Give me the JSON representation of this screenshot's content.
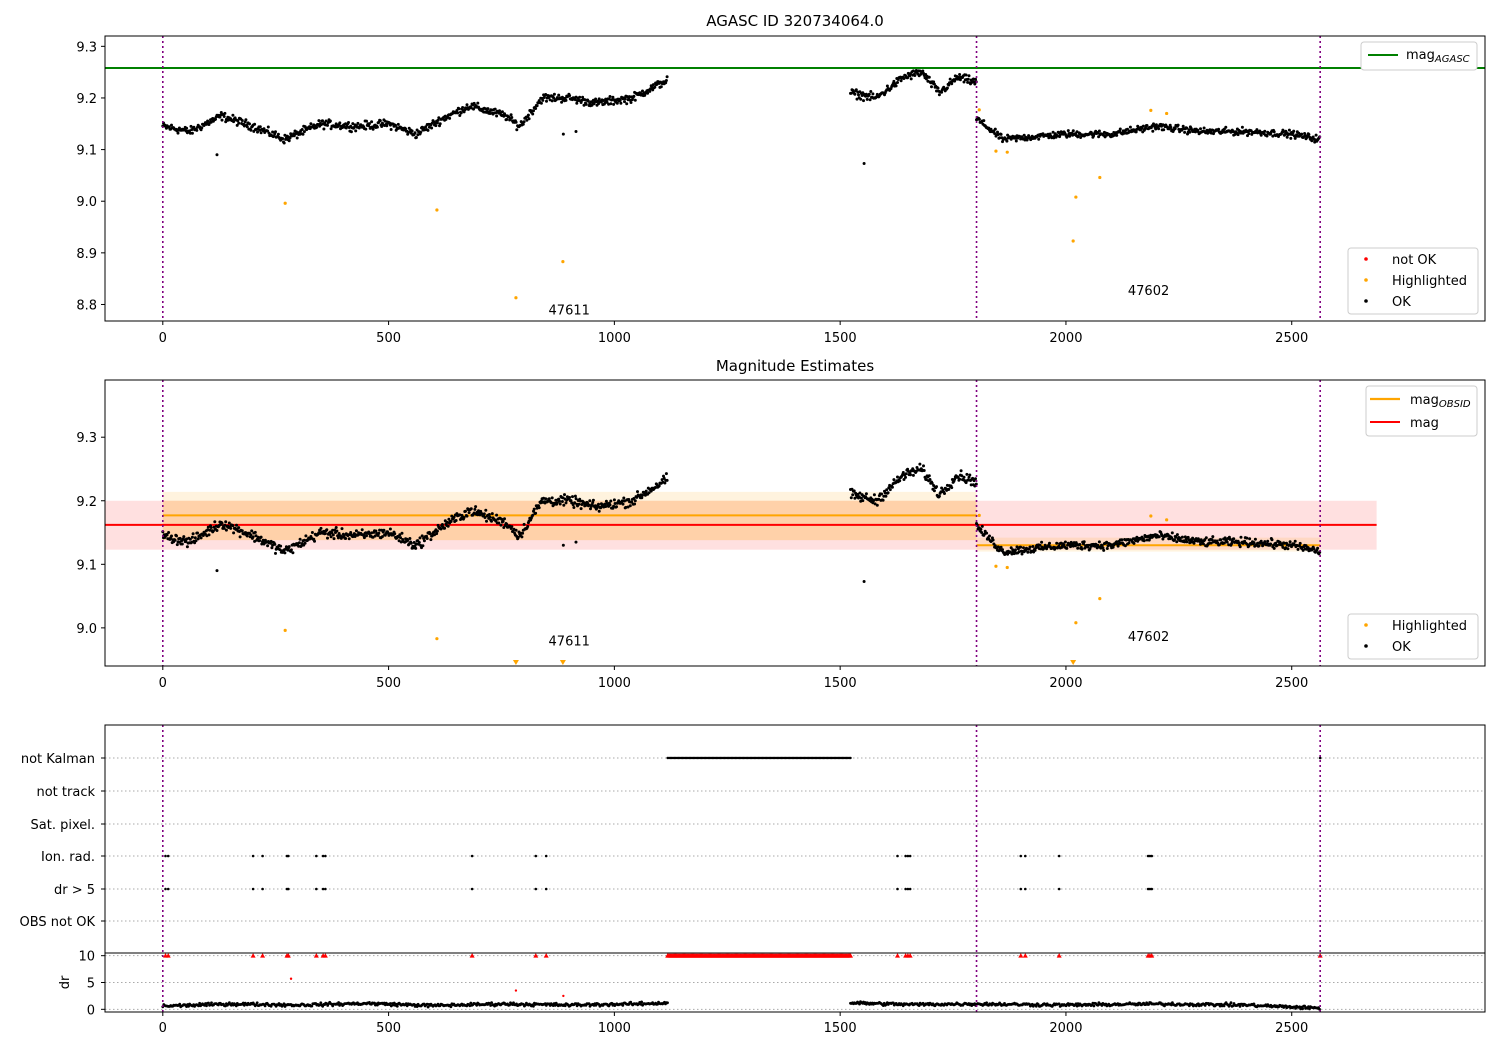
{
  "chart_data": [
    {
      "type": "scatter",
      "title": "AGASC ID 320734064.0",
      "xlim": [
        -128,
        2928
      ],
      "ylim": [
        8.768,
        9.32
      ],
      "xticks": [
        0,
        500,
        1000,
        1500,
        2000,
        2500
      ],
      "yticks": [
        8.8,
        8.9,
        9.0,
        9.1,
        9.2,
        9.3
      ],
      "ytick_labels": [
        "8.8",
        "8.9",
        "9.0",
        "9.1",
        "9.2",
        "9.3"
      ],
      "observation_boundaries": [
        0,
        1802,
        2563
      ],
      "observation_labels": [
        {
          "text": "47611",
          "x": 900,
          "y": 8.79
        },
        {
          "text": "47602",
          "x": 2183,
          "y": 8.828
        }
      ],
      "reference_lines": [
        {
          "name": "mag_AGASC",
          "label": "mag",
          "subscript": "AGASC",
          "y": 9.258,
          "x_range": [
            -128,
            2928
          ],
          "color": "#008000"
        }
      ],
      "ok_segments": [
        {
          "x_range": [
            0,
            1118
          ],
          "y_points": [
            [
              0,
              9.145
            ],
            [
              60,
              9.135
            ],
            [
              130,
              9.165
            ],
            [
              200,
              9.145
            ],
            [
              270,
              9.12
            ],
            [
              350,
              9.15
            ],
            [
              430,
              9.145
            ],
            [
              500,
              9.15
            ],
            [
              560,
              9.13
            ],
            [
              620,
              9.16
            ],
            [
              680,
              9.185
            ],
            [
              760,
              9.165
            ],
            [
              790,
              9.145
            ],
            [
              840,
              9.2
            ],
            [
              900,
              9.2
            ],
            [
              960,
              9.19
            ],
            [
              1040,
              9.2
            ],
            [
              1118,
              9.235
            ]
          ],
          "noise": 0.012
        },
        {
          "x_range": [
            1523,
            1802
          ],
          "y_points": [
            [
              1523,
              9.21
            ],
            [
              1580,
              9.2
            ],
            [
              1640,
              9.24
            ],
            [
              1680,
              9.25
            ],
            [
              1720,
              9.21
            ],
            [
              1760,
              9.24
            ],
            [
              1802,
              9.23
            ]
          ],
          "noise": 0.012
        },
        {
          "x_range": [
            1802,
            2563
          ],
          "y_points": [
            [
              1802,
              9.16
            ],
            [
              1860,
              9.12
            ],
            [
              2000,
              9.13
            ],
            [
              2100,
              9.13
            ],
            [
              2200,
              9.145
            ],
            [
              2300,
              9.135
            ],
            [
              2400,
              9.135
            ],
            [
              2500,
              9.13
            ],
            [
              2563,
              9.12
            ]
          ],
          "noise": 0.01
        }
      ],
      "ok_outliers": [
        [
          120,
          9.09
        ],
        [
          1553,
          9.073
        ],
        [
          887,
          9.13
        ],
        [
          915,
          9.135
        ]
      ],
      "highlighted_points": [
        [
          271,
          8.996
        ],
        [
          607,
          8.983
        ],
        [
          782,
          8.813
        ],
        [
          886,
          8.883
        ],
        [
          1808,
          9.177
        ],
        [
          1845,
          9.097
        ],
        [
          1870,
          9.095
        ],
        [
          2016,
          8.923
        ],
        [
          2022,
          9.008
        ],
        [
          2075,
          9.046
        ],
        [
          2188,
          9.176
        ],
        [
          2223,
          9.17
        ]
      ],
      "legends": [
        {
          "position": "top-right",
          "entries": [
            {
              "label": "mag",
              "subscript": "AGASC",
              "kind": "line",
              "color": "#008000"
            }
          ]
        },
        {
          "position": "lower-right",
          "entries": [
            {
              "label": "not OK",
              "kind": "dot",
              "color": "#ff0000"
            },
            {
              "label": "Highlighted",
              "kind": "dot",
              "color": "#ffa500"
            },
            {
              "label": "OK",
              "kind": "dot",
              "color": "#000000"
            }
          ]
        }
      ]
    },
    {
      "type": "scatter",
      "title": "Magnitude Estimates",
      "xlim": [
        -128,
        2928
      ],
      "ylim": [
        8.94,
        9.39
      ],
      "xticks": [
        0,
        500,
        1000,
        1500,
        2000,
        2500
      ],
      "yticks": [
        9.0,
        9.1,
        9.2,
        9.3
      ],
      "ytick_labels": [
        "9.0",
        "9.1",
        "9.2",
        "9.3"
      ],
      "observation_boundaries": [
        0,
        1802,
        2563
      ],
      "observation_labels": [
        {
          "text": "47611",
          "x": 900,
          "y": 8.98
        },
        {
          "text": "47602",
          "x": 2183,
          "y": 8.987
        }
      ],
      "bands": [
        {
          "name": "mag",
          "x_range": [
            -128,
            2688
          ],
          "y_range": [
            9.123,
            9.2
          ],
          "color": "#ff0000",
          "opacity": 0.12
        },
        {
          "name": "mag_OBSID_47611_outer",
          "x_range": [
            0,
            1802
          ],
          "y_range": [
            9.138,
            9.214
          ],
          "color": "#ffa500",
          "opacity": 0.13
        },
        {
          "name": "mag_OBSID_47611_inner",
          "x_range": [
            0,
            1802
          ],
          "y_range": [
            9.138,
            9.2
          ],
          "color": "#ffa500",
          "opacity": 0.13
        },
        {
          "name": "mag_OBSID_47602",
          "x_range": [
            1802,
            2563
          ],
          "y_range": [
            9.12,
            9.142
          ],
          "color": "#ffa500",
          "opacity": 0.13
        }
      ],
      "reference_lines": [
        {
          "name": "mag_OBSID_47611",
          "y": 9.177,
          "x_range": [
            0,
            1802
          ],
          "color": "#ffa500"
        },
        {
          "name": "mag_OBSID_47602",
          "y": 9.13,
          "x_range": [
            1802,
            2563
          ],
          "color": "#ffa500"
        },
        {
          "name": "mag",
          "y": 9.162,
          "x_range": [
            -128,
            2688
          ],
          "color": "#ff0000"
        }
      ],
      "ok_segments": [
        {
          "x_range": [
            0,
            1118
          ],
          "y_points": [
            [
              0,
              9.145
            ],
            [
              60,
              9.135
            ],
            [
              130,
              9.165
            ],
            [
              200,
              9.145
            ],
            [
              270,
              9.12
            ],
            [
              350,
              9.15
            ],
            [
              430,
              9.145
            ],
            [
              500,
              9.15
            ],
            [
              560,
              9.13
            ],
            [
              620,
              9.16
            ],
            [
              680,
              9.185
            ],
            [
              760,
              9.165
            ],
            [
              790,
              9.145
            ],
            [
              840,
              9.2
            ],
            [
              900,
              9.2
            ],
            [
              960,
              9.19
            ],
            [
              1040,
              9.2
            ],
            [
              1118,
              9.235
            ]
          ],
          "noise": 0.012
        },
        {
          "x_range": [
            1523,
            1802
          ],
          "y_points": [
            [
              1523,
              9.21
            ],
            [
              1580,
              9.2
            ],
            [
              1640,
              9.24
            ],
            [
              1680,
              9.25
            ],
            [
              1720,
              9.21
            ],
            [
              1760,
              9.24
            ],
            [
              1802,
              9.23
            ]
          ],
          "noise": 0.012
        },
        {
          "x_range": [
            1802,
            2563
          ],
          "y_points": [
            [
              1802,
              9.16
            ],
            [
              1860,
              9.12
            ],
            [
              2000,
              9.13
            ],
            [
              2100,
              9.13
            ],
            [
              2200,
              9.145
            ],
            [
              2300,
              9.135
            ],
            [
              2400,
              9.135
            ],
            [
              2500,
              9.13
            ],
            [
              2563,
              9.12
            ]
          ],
          "noise": 0.01
        }
      ],
      "ok_outliers": [
        [
          120,
          9.09
        ],
        [
          1553,
          9.073
        ],
        [
          887,
          9.13
        ],
        [
          915,
          9.135
        ]
      ],
      "highlighted_points": [
        [
          271,
          8.996
        ],
        [
          607,
          8.983
        ],
        [
          1808,
          9.177
        ],
        [
          1845,
          9.097
        ],
        [
          1870,
          9.095
        ],
        [
          2022,
          9.008
        ],
        [
          2075,
          9.046
        ],
        [
          2188,
          9.176
        ],
        [
          2223,
          9.17
        ]
      ],
      "off_scale_points": [
        782,
        886,
        2016
      ],
      "legends": [
        {
          "position": "top-right",
          "entries": [
            {
              "label": "mag",
              "subscript": "OBSID",
              "kind": "line",
              "color": "#ffa500"
            },
            {
              "label": "mag",
              "kind": "line",
              "color": "#ff0000"
            }
          ]
        },
        {
          "position": "lower-right",
          "entries": [
            {
              "label": "Highlighted",
              "kind": "dot",
              "color": "#ffa500"
            },
            {
              "label": "OK",
              "kind": "dot",
              "color": "#000000"
            }
          ]
        }
      ]
    },
    {
      "type": "scatter",
      "title": "",
      "xlim": [
        -128,
        2928
      ],
      "xticks": [
        0,
        500,
        1000,
        1500,
        2000,
        2500
      ],
      "observation_boundaries": [
        0,
        1802,
        2563
      ],
      "flag_rows": [
        "not Kalman",
        "not track",
        "Sat. pixel.",
        "Ion. rad.",
        "dr > 5",
        "OBS not OK"
      ],
      "flag_events": {
        "not Kalman": {
          "dense_range": [
            1118,
            1523
          ],
          "points": [
            2563
          ]
        },
        "not track": {
          "points": []
        },
        "Sat. pixel.": {
          "points": []
        },
        "Ion. rad.": {
          "points": [
            6,
            12,
            200,
            221,
            275,
            278,
            340,
            355,
            360,
            685,
            826,
            849,
            1627,
            1645,
            1650,
            1655,
            1900,
            1910,
            1985,
            2182,
            2186,
            2190
          ]
        },
        "dr > 5": {
          "points": [
            6,
            12,
            200,
            221,
            275,
            278,
            340,
            355,
            360,
            685,
            826,
            849,
            1627,
            1645,
            1650,
            1655,
            1900,
            1910,
            1985,
            2182,
            2186,
            2190
          ]
        },
        "OBS not OK": {
          "points": []
        }
      },
      "dr": {
        "ylabel": "dr",
        "ylim": [
          -0.5,
          10.5
        ],
        "yticks": [
          0,
          5,
          10
        ],
        "ytick_labels": [
          "0",
          "5",
          "10"
        ],
        "segments": [
          [
            0,
            1118
          ],
          [
            1523,
            2563
          ]
        ],
        "level_points": [
          [
            0,
            0.6
          ],
          [
            150,
            1.0
          ],
          [
            300,
            0.8
          ],
          [
            450,
            1.1
          ],
          [
            600,
            0.7
          ],
          [
            750,
            1.0
          ],
          [
            900,
            0.8
          ],
          [
            1050,
            1.0
          ],
          [
            1118,
            1.2
          ],
          [
            1523,
            1.2
          ],
          [
            1650,
            0.9
          ],
          [
            1800,
            1.0
          ],
          [
            2000,
            0.8
          ],
          [
            2200,
            1.0
          ],
          [
            2400,
            0.8
          ],
          [
            2563,
            0.2
          ]
        ],
        "outliers": [
          [
            284,
            5.7
          ],
          [
            782,
            3.5
          ],
          [
            887,
            2.5
          ]
        ],
        "capped_value": 10,
        "capped_ranges": [
          [
            1118,
            1523
          ]
        ],
        "capped_points": [
          6,
          12,
          200,
          221,
          275,
          278,
          340,
          355,
          360,
          685,
          826,
          849,
          1627,
          1645,
          1650,
          1655,
          1900,
          1910,
          1985,
          2182,
          2186,
          2190,
          2563
        ]
      }
    }
  ]
}
